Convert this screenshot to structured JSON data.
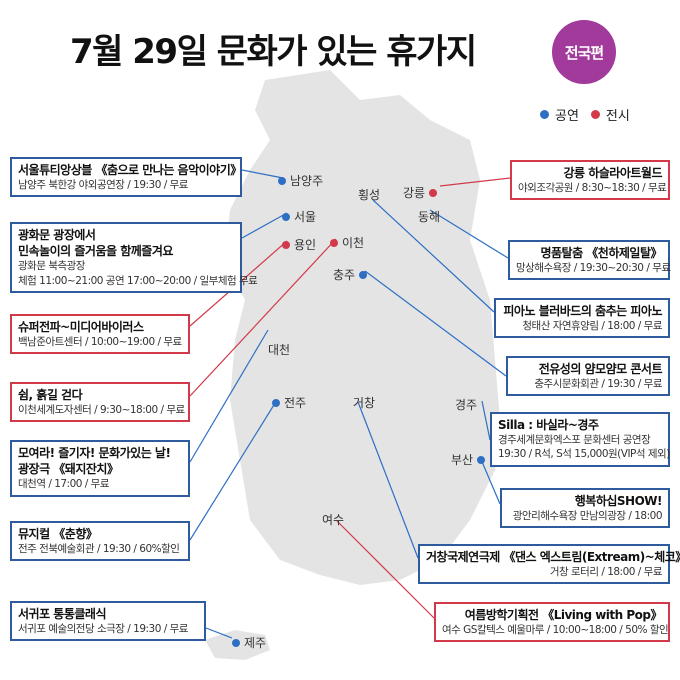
{
  "title": "7월 29일 문화가 있는 휴가지",
  "badge": "전국편",
  "legend": [
    {
      "label": "공연",
      "color": "#2e6fc4"
    },
    {
      "label": "전시",
      "color": "#d23a4a"
    }
  ],
  "colors": {
    "performance": "#2e6fc4",
    "exhibition": "#d23a4a",
    "map_land": "#e2e2e2"
  },
  "cities": [
    "남양주",
    "서울",
    "용인",
    "이천",
    "횡성",
    "강릉",
    "동해",
    "충주",
    "대천",
    "전주",
    "거창",
    "경주",
    "부산",
    "여수",
    "제주"
  ],
  "events": [
    {
      "id": "seoul",
      "type": "공연",
      "city": "남양주",
      "title": "서울튜티앙상블 《춤으로 만나는 음악이야기》",
      "lines": [
        "남양주 북한강 야외공연장 / 19:30 / 무료"
      ]
    },
    {
      "id": "gwanghwamun",
      "type": "공연",
      "city": "서울",
      "title": "광화문 광장에서",
      "lines": [
        "민속놀이의 즐거움을 함께즐겨요",
        "광화문 북측광장",
        "체험 11:00~21:00 공연 17:00~20:00 / 일부체험 무료"
      ]
    },
    {
      "id": "superpower",
      "type": "전시",
      "city": "용인",
      "title": "슈퍼전파~미디어바이러스",
      "lines": [
        "백남준아트센터 / 10:00~19:00 / 무료"
      ]
    },
    {
      "id": "rest",
      "type": "전시",
      "city": "이천",
      "title": "쉼, 흙길 걷다",
      "lines": [
        "이천세계도자센터 / 9:30~18:00 / 무료"
      ]
    },
    {
      "id": "madang",
      "type": "공연",
      "city": "대천",
      "title": "모여라! 즐기자! 문화가있는 날!",
      "lines": [
        "광장극 《돼지잔치》",
        "대천역 / 17:00 / 무료"
      ]
    },
    {
      "id": "chunhyang",
      "type": "공연",
      "city": "전주",
      "title": "뮤지컬 《춘향》",
      "lines": [
        "전주 전북예술회관 / 19:30 / 60%할인"
      ]
    },
    {
      "id": "seogwipo",
      "type": "공연",
      "city": "제주",
      "title": "서귀포 통통클래식",
      "lines": [
        "서귀포 예술의전당 소극장 / 19:30 / 무료"
      ]
    },
    {
      "id": "gangneung",
      "type": "전시",
      "city": "강릉",
      "title": "강릉 하슬라아트월드",
      "lines": [
        "야외조각공원 / 8:30~18:30 / 무료"
      ]
    },
    {
      "id": "tal",
      "type": "공연",
      "city": "동해",
      "title": "명품탈춤 《천하제일탈》",
      "lines": [
        "망상해수욕장 / 19:30~20:30 / 무료"
      ]
    },
    {
      "id": "piano",
      "type": "공연",
      "city": "횡성",
      "title": "피아노 블러바드의 춤추는 피아노",
      "lines": [
        "청태산 자연휴양림 / 18:00 / 무료"
      ]
    },
    {
      "id": "yangmo",
      "type": "공연",
      "city": "충주",
      "title": "전유성의 얌모얌모 콘서트",
      "lines": [
        "충주시문화회관 / 19:30 / 무료"
      ]
    },
    {
      "id": "silla",
      "type": "공연",
      "city": "경주",
      "title": "Silla : 바실라~경주",
      "lines": [
        "경주세계문화엑스포 문화센터 공연장",
        "19:30 / R석, S석 15,000원(VIP석 제외)"
      ]
    },
    {
      "id": "happy",
      "type": "공연",
      "city": "부산",
      "title": "행복하십SHOW!",
      "lines": [
        "광안리해수욕장 만남의광장 / 18:00"
      ]
    },
    {
      "id": "geochang",
      "type": "공연",
      "city": "거창",
      "title": "거창국제연극제 《댄스 엑스트림(Extream)~체코》",
      "lines": [
        "거창 로터리 / 18:00 / 무료"
      ]
    },
    {
      "id": "pop",
      "type": "전시",
      "city": "여수",
      "title": "여름방학기획전 《Living with Pop》",
      "lines": [
        "여수 GS칼텍스 예울마루 / 10:00~18:00 / 50% 할인"
      ]
    }
  ]
}
